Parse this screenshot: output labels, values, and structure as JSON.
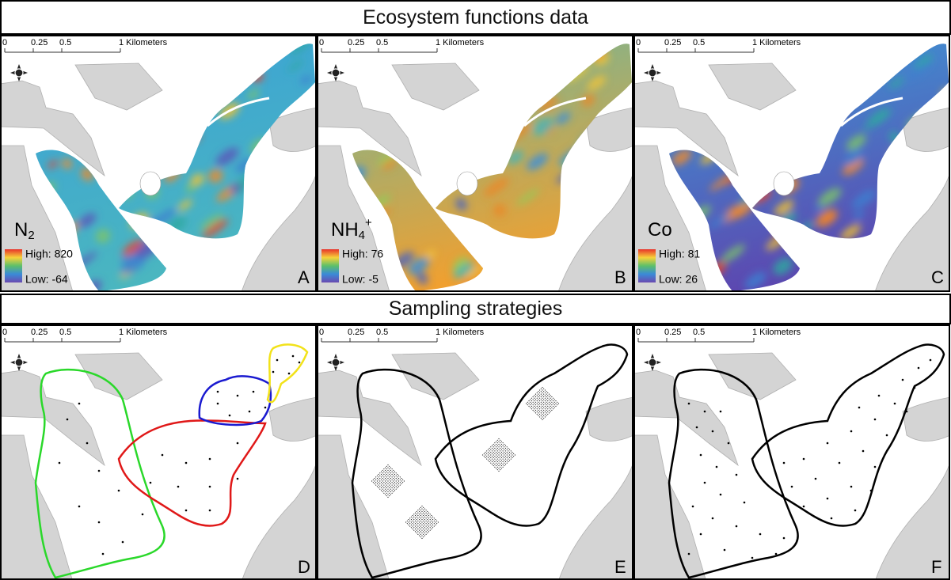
{
  "sections": [
    {
      "title": "Ecosystem functions data",
      "panels": [
        {
          "letter": "A",
          "variable": {
            "base": "N",
            "sub": "2"
          },
          "legend": {
            "high": "High: 820",
            "low": "Low: -64"
          }
        },
        {
          "letter": "B",
          "variable": {
            "base": "NH",
            "sub": "4",
            "sup": "+"
          },
          "legend": {
            "high": "High: 76",
            "low": "Low: -5"
          }
        },
        {
          "letter": "C",
          "variable": {
            "base": "Co"
          },
          "legend": {
            "high": "High: 81",
            "low": "Low: 26"
          }
        }
      ]
    },
    {
      "title": "Sampling strategies",
      "panels": [
        {
          "letter": "D"
        },
        {
          "letter": "E"
        },
        {
          "letter": "F"
        }
      ]
    }
  ],
  "scale_bar": {
    "labels": [
      "0",
      "0.25",
      "0.5",
      "1 Kilometers"
    ]
  }
}
